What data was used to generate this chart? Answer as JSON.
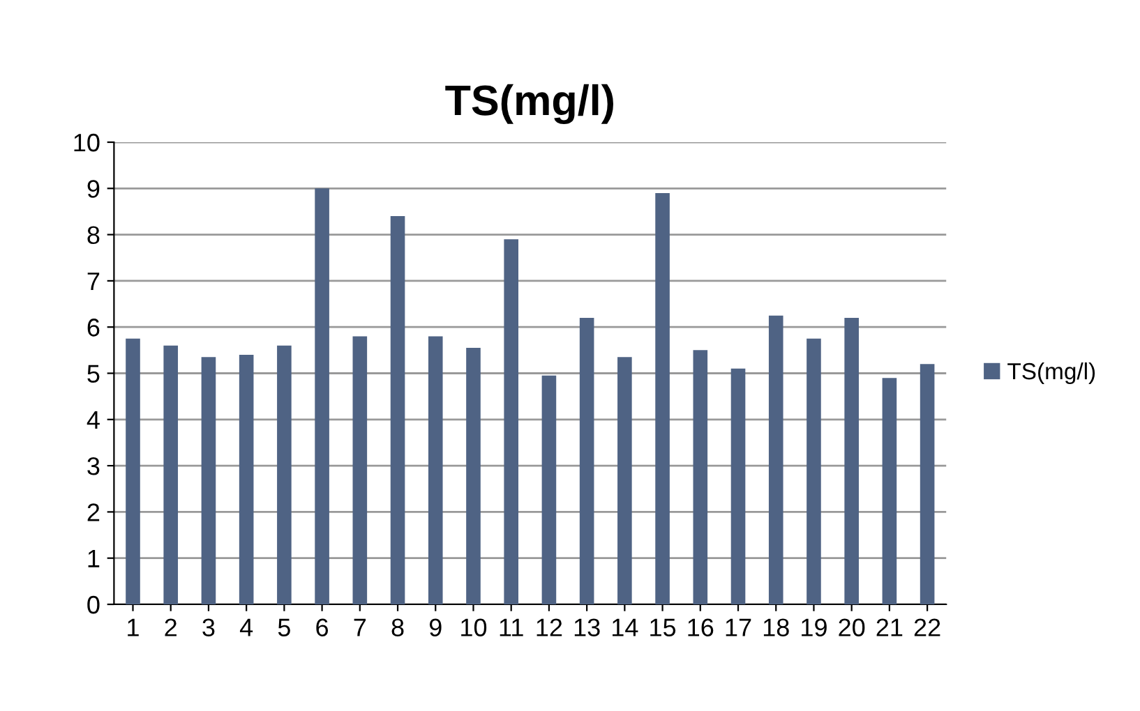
{
  "chart_data": {
    "type": "bar",
    "title": "TS(mg/l)",
    "categories": [
      "1",
      "2",
      "3",
      "4",
      "5",
      "6",
      "7",
      "8",
      "9",
      "10",
      "11",
      "12",
      "13",
      "14",
      "15",
      "16",
      "17",
      "18",
      "19",
      "20",
      "21",
      "22"
    ],
    "series": [
      {
        "name": "TS(mg/l)",
        "color": "#4f6384",
        "values": [
          5.75,
          5.6,
          5.35,
          5.4,
          5.6,
          9.0,
          5.8,
          8.4,
          5.8,
          5.55,
          7.9,
          4.95,
          6.2,
          5.35,
          8.9,
          5.5,
          5.1,
          6.25,
          5.75,
          6.2,
          4.9,
          5.2
        ]
      }
    ],
    "ylim": [
      0,
      10
    ],
    "yticks": [
      0,
      1,
      2,
      3,
      4,
      5,
      6,
      7,
      8,
      9,
      10
    ],
    "grid": "y",
    "legend": "right"
  }
}
